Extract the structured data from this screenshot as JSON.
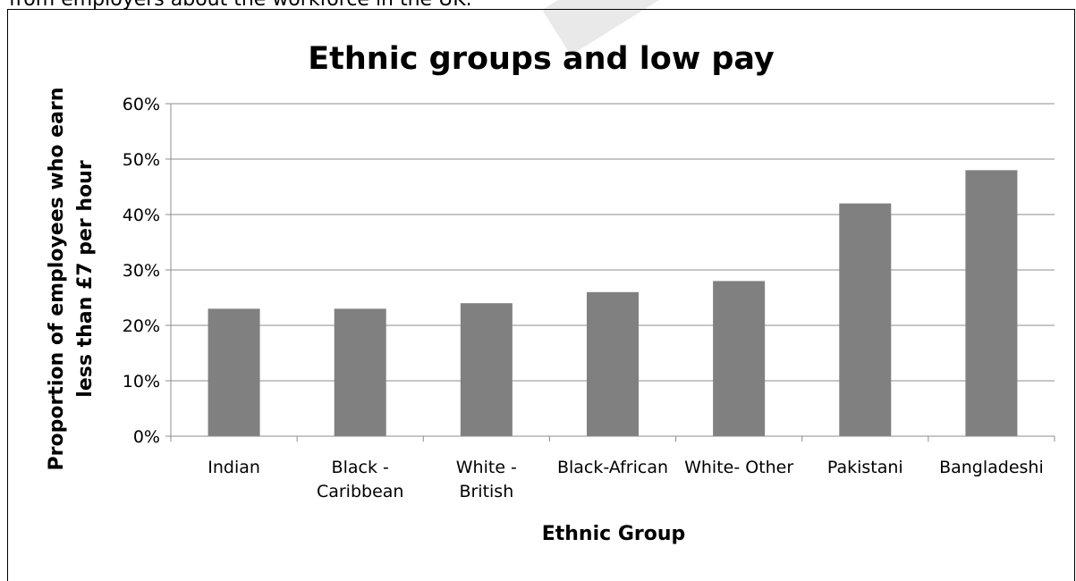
{
  "header_text": "from employers about the workforce in the UK.",
  "chart_data": {
    "type": "bar",
    "title": "Ethnic groups and low pay",
    "xlabel": "Ethnic Group",
    "ylabel_lines": [
      "Proportion of employees who earn",
      "less than £7 per hour"
    ],
    "categories": [
      {
        "lines": [
          "Indian"
        ]
      },
      {
        "lines": [
          "Black -",
          "Caribbean"
        ]
      },
      {
        "lines": [
          "White -",
          "British"
        ]
      },
      {
        "lines": [
          "Black-African"
        ]
      },
      {
        "lines": [
          "White- Other"
        ]
      },
      {
        "lines": [
          "Pakistani"
        ]
      },
      {
        "lines": [
          "Bangladeshi"
        ]
      }
    ],
    "values": [
      23,
      23,
      24,
      26,
      28,
      42,
      48
    ],
    "ylim": [
      0,
      60
    ],
    "yticks": [
      0,
      10,
      20,
      30,
      40,
      50,
      60
    ],
    "ytick_labels": [
      "0%",
      "10%",
      "20%",
      "30%",
      "40%",
      "50%",
      "60%"
    ],
    "grid": true,
    "bar_color": "#808080",
    "grid_color": "#8c8c8c"
  }
}
